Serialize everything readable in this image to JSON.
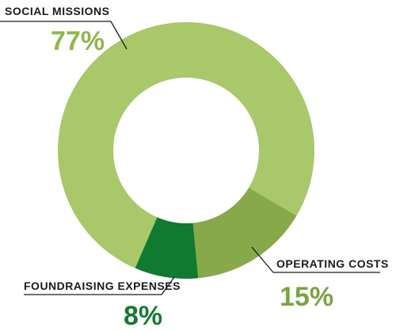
{
  "chart_data": {
    "type": "pie",
    "style": "donut",
    "slices": [
      {
        "label": "SOCIAL MISSIONS",
        "value": 77,
        "value_text": "77%",
        "color": "#a8c86a",
        "label_color": "#8fb64d"
      },
      {
        "label": "OPERATING COSTS",
        "value": 15,
        "value_text": "15%",
        "color": "#87a94a",
        "label_color": "#7ba33e"
      },
      {
        "label": "FOUNDRAISING EXPENSES",
        "value": 8,
        "value_text": "8%",
        "color": "#0f7a30",
        "label_color": "#157a2f"
      }
    ]
  }
}
